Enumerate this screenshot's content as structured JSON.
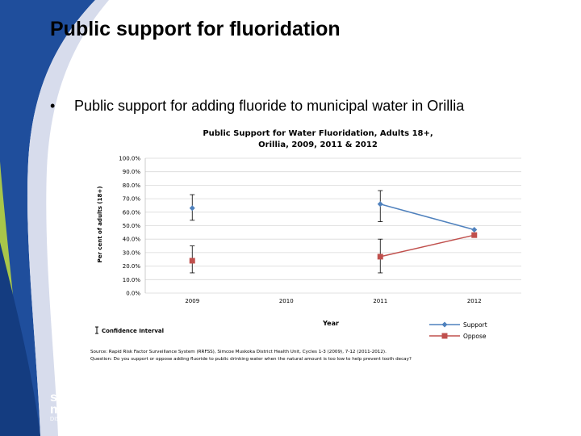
{
  "slide": {
    "title": "Public support for fluoridation",
    "bullet": "Public support for adding fluoride to municipal water in Orillia"
  },
  "logo": {
    "line1": "simcoe",
    "line2": "muskoka",
    "line3": "DISTRICT HEALTH UNIT"
  },
  "colors": {
    "theme_blue": "#1f4e9c",
    "support": "#4f81bd",
    "oppose": "#c0504d"
  },
  "chart_data": {
    "type": "line",
    "title_line1": "Public Support for Water Fluoridation, Adults 18+,",
    "title_line2": "Orillia, 2009, 2011 & 2012",
    "xlabel": "Year",
    "ylabel": "Per cent of adults (18+)",
    "categories": [
      "2009",
      "2010",
      "2011",
      "2012"
    ],
    "yticks": [
      "0.0%",
      "10.0%",
      "20.0%",
      "30.0%",
      "40.0%",
      "50.0%",
      "60.0%",
      "70.0%",
      "80.0%",
      "90.0%",
      "100.0%"
    ],
    "ylim": [
      0,
      100
    ],
    "grid": true,
    "legend_position": "bottom-right",
    "confidence_label": "Confidence Interval",
    "series": [
      {
        "name": "Support",
        "values": [
          63,
          null,
          66,
          47
        ],
        "ci_low": [
          54,
          null,
          53,
          null
        ],
        "ci_high": [
          73,
          null,
          76,
          null
        ],
        "connected": [
          false,
          false,
          true,
          true
        ]
      },
      {
        "name": "Oppose",
        "values": [
          24,
          null,
          27,
          43
        ],
        "ci_low": [
          15,
          null,
          15,
          null
        ],
        "ci_high": [
          35,
          null,
          40,
          null
        ],
        "connected": [
          false,
          false,
          true,
          true
        ]
      }
    ],
    "source_note": "Source: Rapid Risk Factor Surveillance System (RRFSS), Simcoe Muskoka District Health Unit, Cycles 1-3 (2009), 7-12 (2011-2012).",
    "question_note": "Question: Do you support or oppose adding fluoride to public drinking water when the natural amount is too low to help prevent tooth decay?"
  }
}
